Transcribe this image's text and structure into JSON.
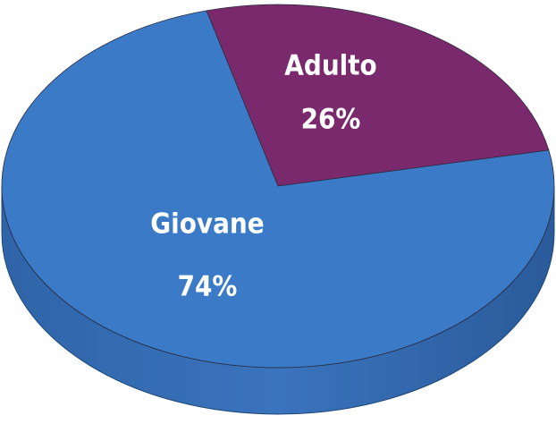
{
  "chart_data": {
    "type": "pie",
    "categories": [
      "Adulto",
      "Giovane"
    ],
    "values": [
      26,
      74
    ],
    "value_labels": [
      "26%",
      "74%"
    ],
    "colors": [
      "#7a2a6c",
      "#3a7ac6"
    ]
  }
}
